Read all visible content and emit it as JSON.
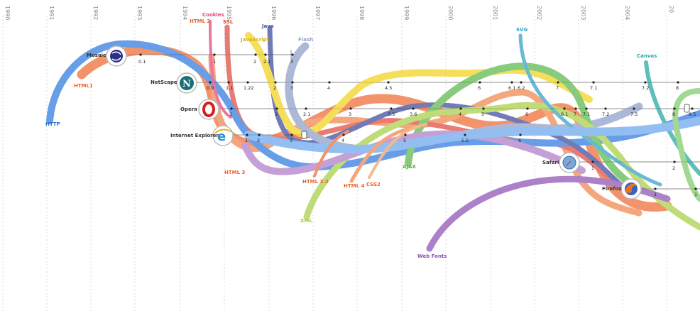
{
  "years": [
    "1990",
    "1991",
    "1992",
    "1993",
    "1994",
    "1995",
    "1996",
    "1997",
    "1998",
    "1999",
    "2000",
    "2001",
    "2002",
    "2003",
    "2004",
    "20"
  ],
  "browsers": [
    {
      "name": "Mosaic",
      "icon": "mosaic-logo-icon",
      "versions": [
        "0.1",
        "1",
        "2",
        "2.1",
        "3"
      ]
    },
    {
      "name": "NetScape",
      "icon": "netscape-logo-icon",
      "versions": [
        "0.9",
        "1.1",
        "1.22",
        "2",
        "3",
        "4",
        "4.5",
        "6",
        "6.1",
        "6.2",
        "7",
        "7.1",
        "7.2",
        "8"
      ]
    },
    {
      "name": "Opera",
      "icon": "opera-logo-icon",
      "versions": [
        "1",
        "2",
        "2.1",
        "3",
        "3.5",
        "3.6",
        "4",
        "5",
        "6",
        "6.1",
        "7",
        "7.1",
        "7.2",
        "7.5",
        "8",
        "8.5"
      ]
    },
    {
      "name": "Internet Explorer",
      "icon": "ie-logo-icon",
      "versions": [
        "1",
        "2",
        "3",
        "4",
        "5",
        "5.5",
        "6"
      ]
    },
    {
      "name": "Safari",
      "icon": "safari-logo-icon",
      "versions": [
        "1",
        "2"
      ]
    },
    {
      "name": "Firefox",
      "icon": "firefox-logo-icon",
      "versions": [
        "1",
        "1"
      ]
    }
  ],
  "technologies": [
    {
      "name": "Cookies",
      "color": "#e0457b"
    },
    {
      "name": "HTML 2",
      "color": "#e8622c"
    },
    {
      "name": "SSL",
      "color": "#d9452b"
    },
    {
      "name": "Java",
      "color": "#3b4a9c"
    },
    {
      "name": "JavaScript",
      "color": "#e8c51a"
    },
    {
      "name": "Flash",
      "color": "#8fa3c9"
    },
    {
      "name": "SVG",
      "color": "#2f9fc4"
    },
    {
      "name": "Canvas",
      "color": "#23a6a0"
    },
    {
      "name": "HTML1",
      "color": "#e8622c"
    },
    {
      "name": "HTTP",
      "color": "#2d6fd6"
    },
    {
      "name": "HTML 3",
      "color": "#e8622c"
    },
    {
      "name": "HTML 3.2",
      "color": "#e8622c"
    },
    {
      "name": "HTML 4",
      "color": "#e8622c"
    },
    {
      "name": "CSS2",
      "color": "#e8622c"
    },
    {
      "name": "AJAX",
      "color": "#4fae3a"
    },
    {
      "name": "XML",
      "color": "#a8c83a"
    },
    {
      "name": "Web Fonts",
      "color": "#8a4fae"
    }
  ]
}
